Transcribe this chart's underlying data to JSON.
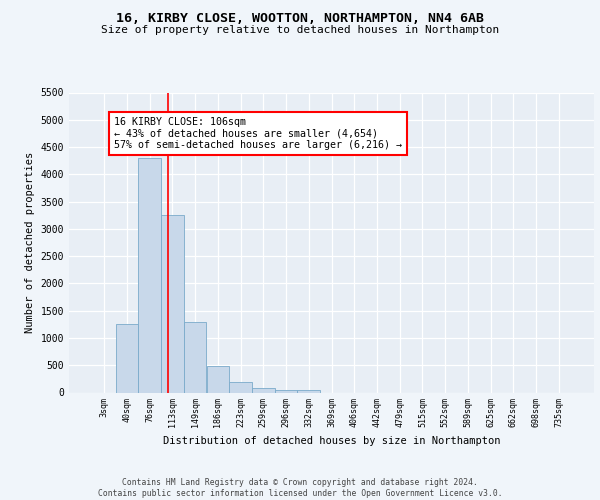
{
  "title_line1": "16, KIRBY CLOSE, WOOTTON, NORTHAMPTON, NN4 6AB",
  "title_line2": "Size of property relative to detached houses in Northampton",
  "xlabel": "Distribution of detached houses by size in Northampton",
  "ylabel": "Number of detached properties",
  "footer_line1": "Contains HM Land Registry data © Crown copyright and database right 2024.",
  "footer_line2": "Contains public sector information licensed under the Open Government Licence v3.0.",
  "bar_labels": [
    "3sqm",
    "40sqm",
    "76sqm",
    "113sqm",
    "149sqm",
    "186sqm",
    "223sqm",
    "259sqm",
    "296sqm",
    "332sqm",
    "369sqm",
    "406sqm",
    "442sqm",
    "479sqm",
    "515sqm",
    "552sqm",
    "589sqm",
    "625sqm",
    "662sqm",
    "698sqm",
    "735sqm"
  ],
  "bar_values": [
    0,
    1250,
    4300,
    3250,
    1300,
    480,
    200,
    90,
    55,
    50,
    0,
    0,
    0,
    0,
    0,
    0,
    0,
    0,
    0,
    0,
    0
  ],
  "bar_color": "#c8d8ea",
  "bar_edge_color": "#7aaaca",
  "ylim": [
    0,
    5500
  ],
  "yticks": [
    0,
    500,
    1000,
    1500,
    2000,
    2500,
    3000,
    3500,
    4000,
    4500,
    5000,
    5500
  ],
  "annotation_text": "16 KIRBY CLOSE: 106sqm\n← 43% of detached houses are smaller (4,654)\n57% of semi-detached houses are larger (6,216) →",
  "vline_x_index": 2.82,
  "bg_color": "#e8eef5",
  "fig_bg_color": "#f0f5fa"
}
